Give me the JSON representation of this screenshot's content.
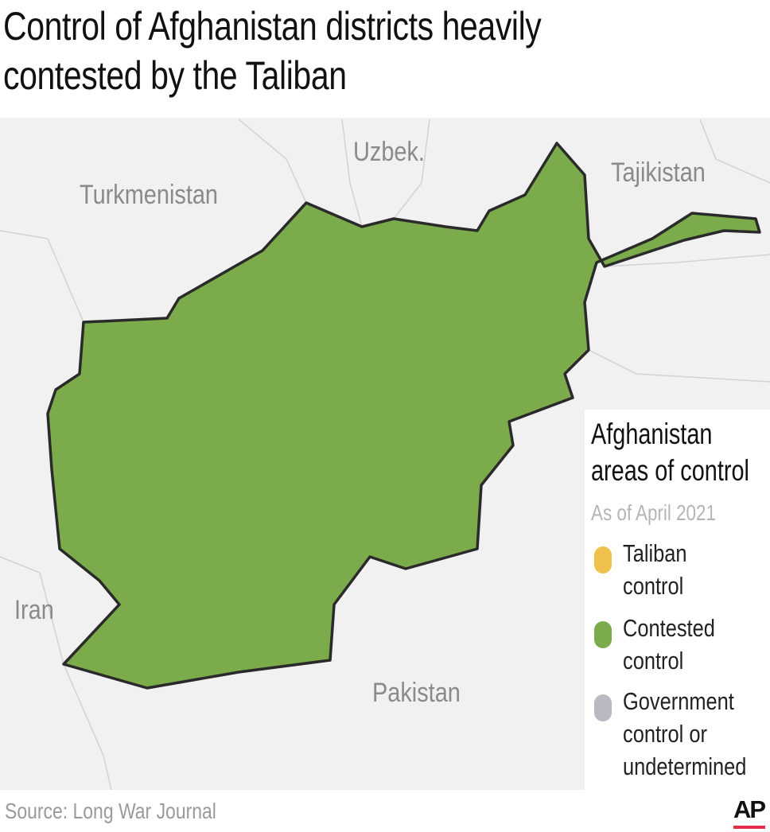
{
  "title": "Control of Afghanistan districts heavily contested by the Taliban",
  "title_lines": [
    "Control of Afghanistan districts heavily",
    "contested by the Taliban"
  ],
  "map": {
    "labels": {
      "uzbek": "Uzbek.",
      "tajikistan": "Tajikistan",
      "turkmenistan": "Turkmenistan",
      "iran": "Iran",
      "pakistan": "Pakistan"
    },
    "colors": {
      "taliban": "#efc14f",
      "contested": "#7bab4b",
      "government": "#b9b9c1",
      "border": "#2a2a2a",
      "background": "#f1f1f1"
    }
  },
  "legend": {
    "title_lines": [
      "Afghanistan",
      "areas of control"
    ],
    "subtitle": "As of April 2021",
    "items": [
      {
        "lines": [
          "Taliban",
          "control"
        ],
        "color": "#efc14f"
      },
      {
        "lines": [
          "Contested",
          "control"
        ],
        "color": "#7bab4b"
      },
      {
        "lines": [
          "Government",
          "control or",
          "undetermined"
        ],
        "color": "#b9b9c1"
      }
    ]
  },
  "source": "Source: Long War Journal",
  "logo": "AP"
}
